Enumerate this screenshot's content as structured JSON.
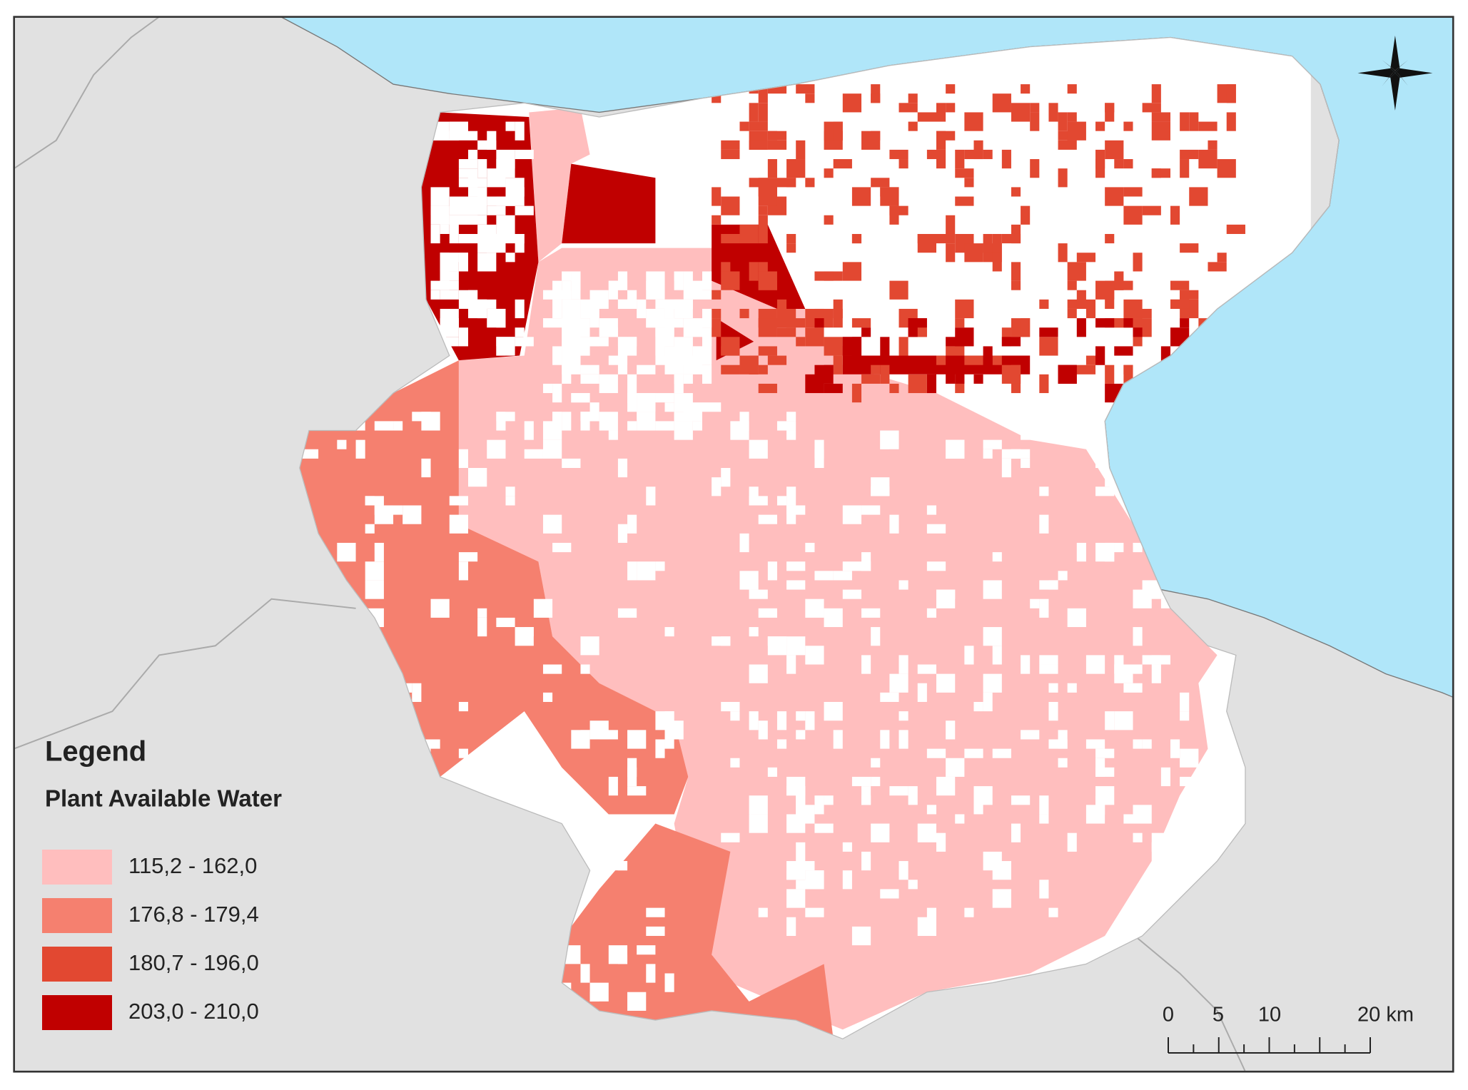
{
  "legend": {
    "title": "Legend",
    "subtitle": "Plant Available Water",
    "classes": [
      {
        "label": "115,2 - 162,0",
        "color": "#ffbebe"
      },
      {
        "label": "176,8 - 179,4",
        "color": "#f5806f"
      },
      {
        "label": "180,7 - 196,0",
        "color": "#e24831"
      },
      {
        "label": "203,0 - 210,0",
        "color": "#c00000"
      }
    ]
  },
  "scale_bar": {
    "labels": [
      "0",
      "5",
      "10",
      "20 km"
    ]
  }
}
